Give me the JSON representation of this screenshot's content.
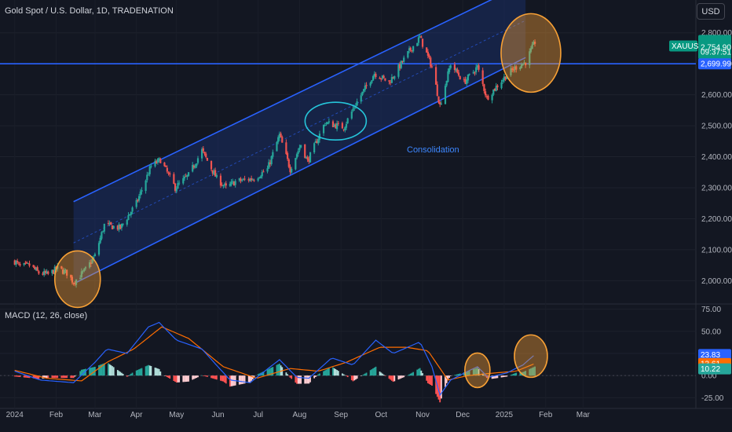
{
  "header": {
    "title": "Gold Spot / U.S. Dollar, 1D, TRADENATION",
    "currency": "USD"
  },
  "macd_label": "MACD (12, 26, close)",
  "annotation": "Consolidation",
  "colors": {
    "background": "#131722",
    "up": "#26a69a",
    "down": "#ef5350",
    "channel_line": "#2962ff",
    "channel_fill": "#1e3a8a",
    "level_line": "#2962ff",
    "highlight_orange": "#f7a035",
    "highlight_teal": "#26c6da",
    "macd_line": "#2962ff",
    "signal_line": "#ff6d00"
  },
  "tags": {
    "symbol": "XAUUSD",
    "price": "2,754.90",
    "countdown": "09:37:51",
    "level": "2,699.99",
    "macd": "23.83",
    "signal": "13.61",
    "histogram": "10.22"
  },
  "chart_data": [
    {
      "type": "candlestick",
      "title": "Gold Spot / U.S. Dollar, 1D, TRADENATION",
      "ylim": [
        1930,
        2850
      ],
      "y_ticks": [
        "2,800.00",
        "2,700.00",
        "2,600.00",
        "2,500.00",
        "2,400.00",
        "2,300.00",
        "2,200.00",
        "2,100.00",
        "2,000.00"
      ],
      "x_ticks": [
        "2024",
        "Feb",
        "Mar",
        "Apr",
        "May",
        "Jun",
        "Jul",
        "Aug",
        "Sep",
        "Oct",
        "Nov",
        "Dec",
        "2025",
        "Feb",
        "Mar"
      ],
      "horizontal_level": 2699.99,
      "last_price": 2754.9,
      "path_points": [
        [
          "2024-01-01",
          2063
        ],
        [
          "2024-01-05",
          2045
        ],
        [
          "2024-01-12",
          2050
        ],
        [
          "2024-01-19",
          2025
        ],
        [
          "2024-01-26",
          2020
        ],
        [
          "2024-02-02",
          2040
        ],
        [
          "2024-02-09",
          2025
        ],
        [
          "2024-02-14",
          1995
        ],
        [
          "2024-02-23",
          2035
        ],
        [
          "2024-03-01",
          2080
        ],
        [
          "2024-03-08",
          2180
        ],
        [
          "2024-03-20",
          2170
        ],
        [
          "2024-04-01",
          2250
        ],
        [
          "2024-04-12",
          2370
        ],
        [
          "2024-04-19",
          2390
        ],
        [
          "2024-04-30",
          2300
        ],
        [
          "2024-05-10",
          2340
        ],
        [
          "2024-05-20",
          2420
        ],
        [
          "2024-05-31",
          2330
        ],
        [
          "2024-06-07",
          2300
        ],
        [
          "2024-06-14",
          2320
        ],
        [
          "2024-06-28",
          2330
        ],
        [
          "2024-07-08",
          2360
        ],
        [
          "2024-07-17",
          2470
        ],
        [
          "2024-07-25",
          2360
        ],
        [
          "2024-08-02",
          2440
        ],
        [
          "2024-08-07",
          2385
        ],
        [
          "2024-08-20",
          2510
        ],
        [
          "2024-09-03",
          2495
        ],
        [
          "2024-09-12",
          2570
        ],
        [
          "2024-09-26",
          2670
        ],
        [
          "2024-10-07",
          2640
        ],
        [
          "2024-10-22",
          2740
        ],
        [
          "2024-10-30",
          2785
        ],
        [
          "2024-11-08",
          2690
        ],
        [
          "2024-11-14",
          2565
        ],
        [
          "2024-11-22",
          2700
        ],
        [
          "2024-12-02",
          2640
        ],
        [
          "2024-12-12",
          2690
        ],
        [
          "2024-12-19",
          2590
        ],
        [
          "2025-01-02",
          2660
        ],
        [
          "2025-01-10",
          2690
        ],
        [
          "2025-01-17",
          2705
        ],
        [
          "2025-01-24",
          2770
        ]
      ],
      "channel": {
        "start": "2024-02-14",
        "end": "2025-01-17",
        "upper": [
          2255,
          2960
        ],
        "lower": [
          1990,
          2720
        ],
        "midline": [
          2122,
          2840
        ]
      },
      "highlights": [
        {
          "kind": "orange",
          "center": [
            "2024-02-17",
            2005
          ],
          "label": ""
        },
        {
          "kind": "teal",
          "center": [
            "2024-08-28",
            2515
          ],
          "label": ""
        },
        {
          "kind": "orange",
          "center": [
            "2025-01-21",
            2735
          ],
          "label": ""
        }
      ],
      "annotation_text": "Consolidation"
    },
    {
      "type": "macd",
      "title": "MACD (12, 26, close)",
      "ylim": [
        -30,
        80
      ],
      "y_ticks": [
        "75.00",
        "50.00",
        "25.00",
        "0.00",
        "-25.00"
      ],
      "macd_points": [
        [
          "2024-01-01",
          5
        ],
        [
          "2024-01-20",
          -5
        ],
        [
          "2024-02-14",
          -8
        ],
        [
          "2024-03-01",
          15
        ],
        [
          "2024-03-10",
          30
        ],
        [
          "2024-03-25",
          25
        ],
        [
          "2024-04-10",
          55
        ],
        [
          "2024-04-18",
          60
        ],
        [
          "2024-05-01",
          40
        ],
        [
          "2024-05-20",
          30
        ],
        [
          "2024-06-10",
          -5
        ],
        [
          "2024-06-25",
          -8
        ],
        [
          "2024-07-17",
          18
        ],
        [
          "2024-07-30",
          -2
        ],
        [
          "2024-08-08",
          -3
        ],
        [
          "2024-08-25",
          20
        ],
        [
          "2024-09-10",
          12
        ],
        [
          "2024-09-27",
          40
        ],
        [
          "2024-10-10",
          25
        ],
        [
          "2024-10-30",
          38
        ],
        [
          "2024-11-08",
          10
        ],
        [
          "2024-11-14",
          -22
        ],
        [
          "2024-11-22",
          -5
        ],
        [
          "2024-12-05",
          5
        ],
        [
          "2024-12-12",
          10
        ],
        [
          "2024-12-20",
          -2
        ],
        [
          "2025-01-03",
          3
        ],
        [
          "2025-01-15",
          12
        ],
        [
          "2025-01-24",
          23.83
        ]
      ],
      "signal_points": [
        [
          "2024-01-01",
          6
        ],
        [
          "2024-01-25",
          -3
        ],
        [
          "2024-02-20",
          -6
        ],
        [
          "2024-03-10",
          15
        ],
        [
          "2024-03-30",
          30
        ],
        [
          "2024-04-20",
          55
        ],
        [
          "2024-05-10",
          42
        ],
        [
          "2024-06-05",
          10
        ],
        [
          "2024-06-30",
          -3
        ],
        [
          "2024-07-25",
          8
        ],
        [
          "2024-08-15",
          5
        ],
        [
          "2024-09-05",
          15
        ],
        [
          "2024-09-30",
          32
        ],
        [
          "2024-10-20",
          32
        ],
        [
          "2024-11-05",
          28
        ],
        [
          "2024-11-20",
          -5
        ],
        [
          "2024-12-05",
          0
        ],
        [
          "2024-12-25",
          3
        ],
        [
          "2025-01-10",
          5
        ],
        [
          "2025-01-24",
          13.61
        ]
      ],
      "histogram_last": 10.22,
      "highlights": [
        {
          "kind": "orange",
          "center": [
            "2024-12-12",
            6
          ],
          "label": ""
        },
        {
          "kind": "orange",
          "center": [
            "2025-01-21",
            22
          ],
          "label": ""
        }
      ]
    }
  ]
}
